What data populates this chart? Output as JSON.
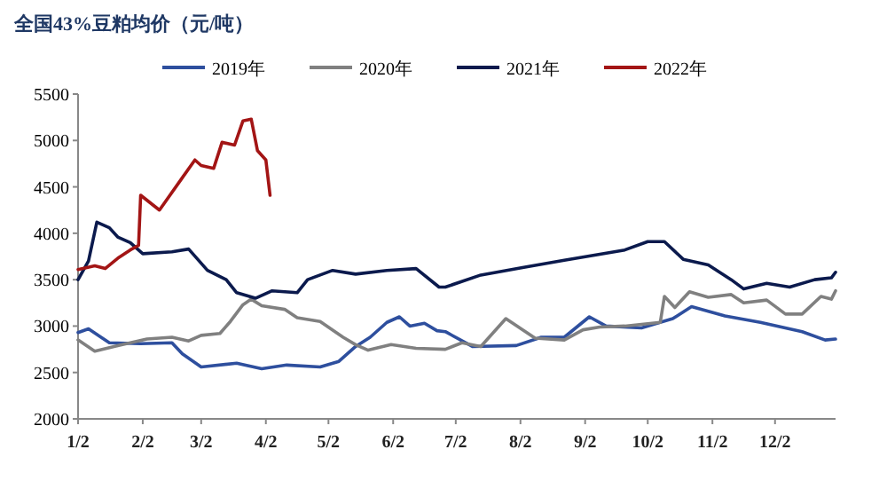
{
  "chart_data": {
    "type": "line",
    "title": "全国43%豆粕均价（元/吨）",
    "xlim": [
      "--01-02",
      "--12-31"
    ],
    "xticks": [
      {
        "value": "--01-02",
        "label": "1/2"
      },
      {
        "value": "--02-02",
        "label": "2/2"
      },
      {
        "value": "--03-02",
        "label": "3/2"
      },
      {
        "value": "--04-02",
        "label": "4/2"
      },
      {
        "value": "--05-02",
        "label": "5/2"
      },
      {
        "value": "--06-02",
        "label": "6/2"
      },
      {
        "value": "--07-02",
        "label": "7/2"
      },
      {
        "value": "--08-02",
        "label": "8/2"
      },
      {
        "value": "--09-02",
        "label": "9/2"
      },
      {
        "value": "--10-02",
        "label": "10/2"
      },
      {
        "value": "--11-02",
        "label": "11/2"
      },
      {
        "value": "--12-02",
        "label": "12/2"
      }
    ],
    "ylim": [
      2000,
      5500
    ],
    "yticks": [
      2000,
      2500,
      3000,
      3500,
      4000,
      4500,
      5000,
      5500
    ],
    "legend": "top",
    "grid": false,
    "marker": "none",
    "line_style": "solid",
    "series": [
      {
        "name": "2019年",
        "color": "#2e4f9e",
        "x": [
          "--01-02",
          "--01-07",
          "--01-13",
          "--01-17",
          "--02-01",
          "--02-16",
          "--02-21",
          "--03-02",
          "--03-19",
          "--03-31",
          "--04-12",
          "--04-28",
          "--05-07",
          "--05-15",
          "--05-22",
          "--05-30",
          "--06-05",
          "--06-10",
          "--06-17",
          "--06-23",
          "--06-27",
          "--07-10",
          "--07-31",
          "--08-12",
          "--08-23",
          "--09-04",
          "--09-12",
          "--09-29",
          "--10-14",
          "--10-23",
          "--11-08",
          "--11-25",
          "--12-15",
          "--12-26",
          "--12-31"
        ],
        "values": [
          2930,
          2970,
          2880,
          2820,
          2810,
          2820,
          2700,
          2560,
          2600,
          2540,
          2580,
          2560,
          2620,
          2780,
          2880,
          3040,
          3100,
          3000,
          3030,
          2950,
          2940,
          2780,
          2790,
          2880,
          2880,
          3100,
          3000,
          2980,
          3080,
          3210,
          3110,
          3040,
          2940,
          2850,
          2860
        ]
      },
      {
        "name": "2020年",
        "color": "#808080",
        "x": [
          "--01-02",
          "--01-10",
          "--01-21",
          "--02-04",
          "--02-16",
          "--02-24",
          "--03-02",
          "--03-11",
          "--03-16",
          "--03-22",
          "--03-26",
          "--03-31",
          "--04-11",
          "--04-17",
          "--04-28",
          "--05-09",
          "--05-15",
          "--05-21",
          "--06-01",
          "--06-13",
          "--06-27",
          "--07-05",
          "--07-14",
          "--07-26",
          "--08-09",
          "--08-23",
          "--09-01",
          "--09-09",
          "--09-21",
          "--10-08",
          "--10-10",
          "--10-15",
          "--10-22",
          "--10-31",
          "--11-11",
          "--11-17",
          "--11-28",
          "--12-07",
          "--12-15",
          "--12-24",
          "--12-29",
          "--12-31"
        ],
        "values": [
          2850,
          2730,
          2790,
          2860,
          2880,
          2840,
          2900,
          2920,
          3050,
          3230,
          3290,
          3220,
          3180,
          3090,
          3050,
          2880,
          2800,
          2740,
          2800,
          2760,
          2750,
          2820,
          2780,
          3080,
          2870,
          2850,
          2960,
          2990,
          3000,
          3040,
          3320,
          3200,
          3370,
          3310,
          3340,
          3250,
          3280,
          3130,
          3130,
          3320,
          3290,
          3380
        ]
      },
      {
        "name": "2021年",
        "color": "#0b1a4d",
        "x": [
          "--01-02",
          "--01-07",
          "--01-11",
          "--01-17",
          "--01-21",
          "--01-27",
          "--02-02",
          "--02-16",
          "--02-24",
          "--03-05",
          "--03-14",
          "--03-19",
          "--03-28",
          "--04-05",
          "--04-17",
          "--04-22",
          "--05-04",
          "--05-15",
          "--05-30",
          "--06-13",
          "--06-24",
          "--06-27",
          "--07-14",
          "--08-03",
          "--08-23",
          "--09-21",
          "--10-02",
          "--10-10",
          "--10-19",
          "--10-31",
          "--11-11",
          "--11-17",
          "--11-28",
          "--12-09",
          "--12-21",
          "--12-29",
          "--12-31"
        ],
        "values": [
          3500,
          3700,
          4120,
          4060,
          3960,
          3900,
          3780,
          3800,
          3830,
          3600,
          3500,
          3360,
          3300,
          3380,
          3360,
          3500,
          3600,
          3560,
          3600,
          3620,
          3420,
          3420,
          3550,
          3630,
          3710,
          3820,
          3910,
          3910,
          3720,
          3660,
          3500,
          3400,
          3460,
          3420,
          3500,
          3520,
          3580
        ]
      },
      {
        "name": "2022年",
        "color": "#a31515",
        "x": [
          "--01-02",
          "--01-10",
          "--01-15",
          "--01-21",
          "--01-27",
          "--01-31",
          "--02-01",
          "--02-10",
          "--02-21",
          "--02-27",
          "--03-02",
          "--03-08",
          "--03-12",
          "--03-18",
          "--03-22",
          "--03-26",
          "--03-29",
          "--04-02",
          "--04-04"
        ],
        "values": [
          3610,
          3650,
          3620,
          3730,
          3820,
          3870,
          4410,
          4250,
          4600,
          4790,
          4730,
          4700,
          4980,
          4950,
          5210,
          5230,
          4890,
          4790,
          4410
        ]
      }
    ]
  }
}
